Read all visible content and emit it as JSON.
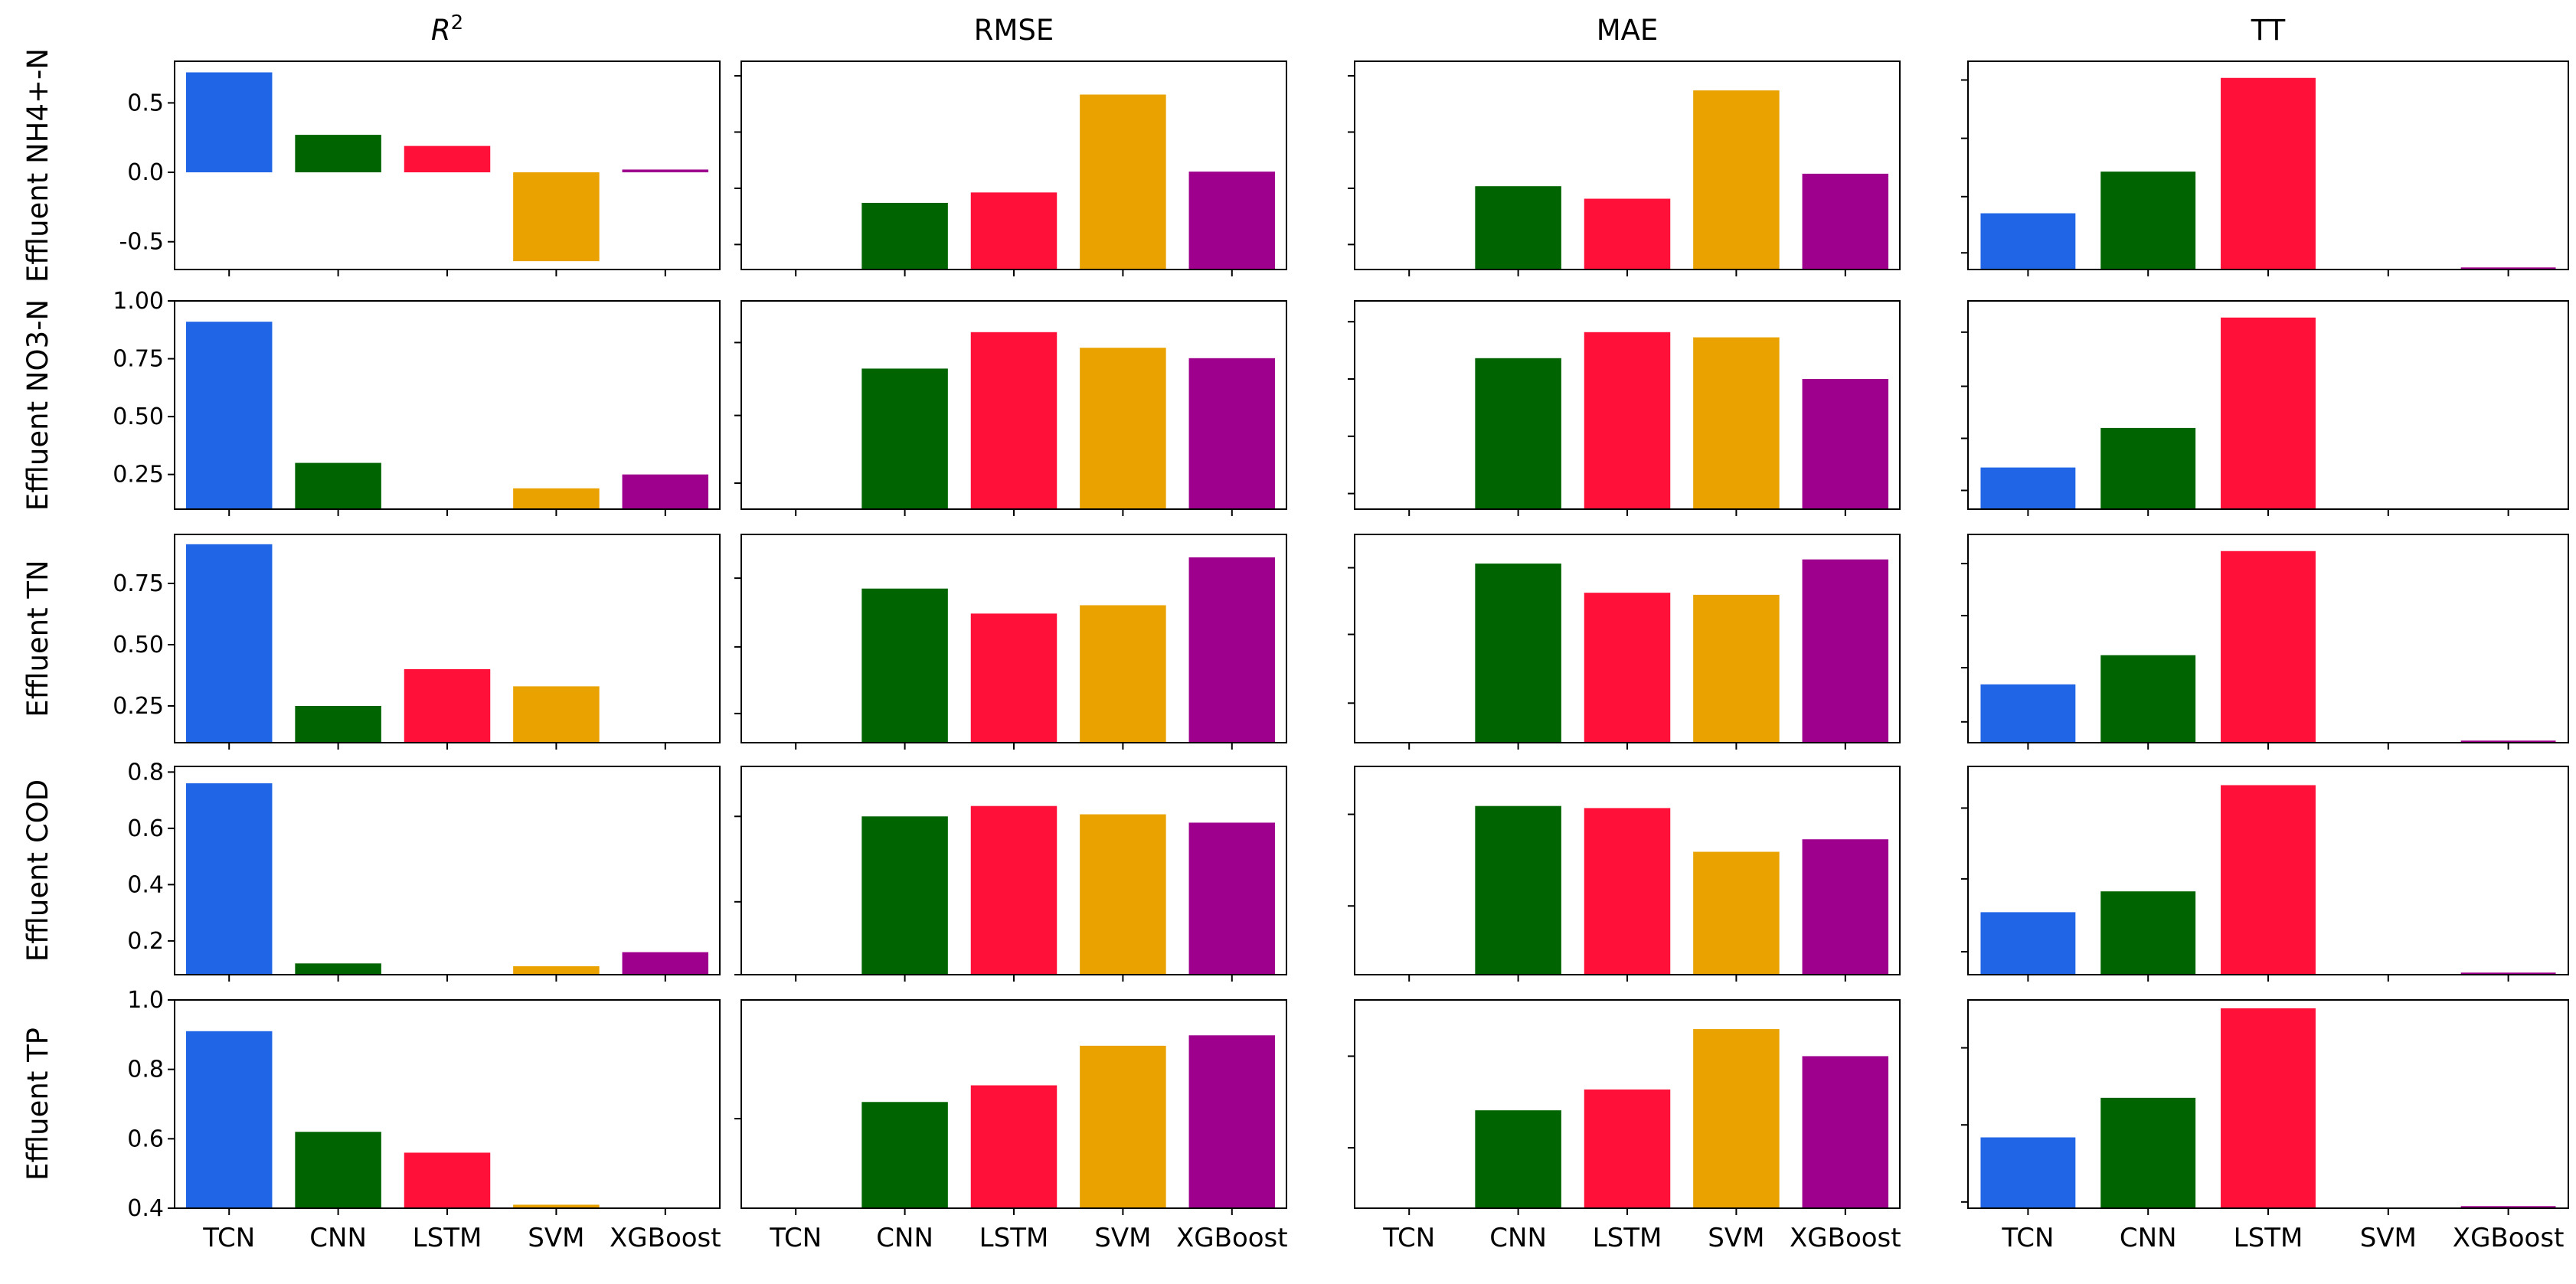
{
  "chart_data": {
    "type": "bar",
    "layout": "grid 5 rows x 4 columns",
    "categories": [
      "TCN",
      "CNN",
      "LSTM",
      "SVM",
      "XGBoost"
    ],
    "colors": [
      "#1f65e6",
      "#006400",
      "#ff1038",
      "#e9a200",
      "#9e008d"
    ],
    "columns": [
      {
        "title_base": "R",
        "title_sup": "2"
      },
      {
        "title_base": "RMSE",
        "title_sup": ""
      },
      {
        "title_base": "MAE",
        "title_sup": ""
      },
      {
        "title_base": "TT",
        "title_sup": ""
      }
    ],
    "rows": [
      {
        "label": "Effluent NH4+-N",
        "panels": [
          {
            "ylim": [
              -0.7,
              0.8
            ],
            "yticks": [
              -0.5,
              0.0,
              0.5
            ],
            "ytick_labels": [
              "-0.5",
              "0.0",
              "0.5"
            ],
            "values": [
              0.72,
              0.27,
              0.19,
              -0.64,
              0.02
            ]
          },
          {
            "ylim": [
              0,
              1
            ],
            "yticks": [
              0.12,
              0.39,
              0.66,
              0.93
            ],
            "ytick_labels": [],
            "values": [
              0.0,
              0.32,
              0.37,
              0.84,
              0.47
            ]
          },
          {
            "ylim": [
              0,
              1
            ],
            "yticks": [
              0.12,
              0.39,
              0.66,
              0.93
            ],
            "ytick_labels": [],
            "values": [
              0.0,
              0.4,
              0.34,
              0.86,
              0.46
            ]
          },
          {
            "ylim": [
              0,
              1
            ],
            "yticks": [
              0.08,
              0.35,
              0.63,
              0.91
            ],
            "ytick_labels": [],
            "values": [
              0.27,
              0.47,
              0.92,
              0.0,
              0.01
            ]
          }
        ]
      },
      {
        "label": "Effluent NO3-N",
        "panels": [
          {
            "ylim": [
              0.1,
              1.0
            ],
            "yticks": [
              0.25,
              0.5,
              0.75,
              1.0
            ],
            "ytick_labels": [
              "0.25",
              "0.50",
              "0.75",
              "1.00"
            ],
            "values": [
              0.91,
              0.3,
              0.1,
              0.19,
              0.25
            ]
          },
          {
            "ylim": [
              0.6,
              1.0
            ],
            "yticks": [
              0.65,
              0.78,
              0.92
            ],
            "ytick_labels": [],
            "values": [
              0.6,
              0.87,
              0.94,
              0.91,
              0.89
            ]
          },
          {
            "ylim": [
              0.6,
              1.0
            ],
            "yticks": [
              0.63,
              0.74,
              0.85,
              0.96
            ],
            "ytick_labels": [],
            "values": [
              0.6,
              0.89,
              0.94,
              0.93,
              0.85
            ]
          },
          {
            "ylim": [
              0,
              1.0
            ],
            "yticks": [
              0.09,
              0.34,
              0.59,
              0.85
            ],
            "ytick_labels": [],
            "values": [
              0.2,
              0.39,
              0.92,
              0.0,
              0.0
            ]
          }
        ]
      },
      {
        "label": "Effluent TN",
        "panels": [
          {
            "ylim": [
              0.1,
              0.95
            ],
            "yticks": [
              0.25,
              0.5,
              0.75
            ],
            "ytick_labels": [
              "0.25",
              "0.50",
              "0.75"
            ],
            "values": [
              0.91,
              0.25,
              0.4,
              0.33,
              0.1
            ]
          },
          {
            "ylim": [
              0,
              1
            ],
            "yticks": [
              0.14,
              0.46,
              0.79
            ],
            "ytick_labels": [],
            "values": [
              0.0,
              0.74,
              0.62,
              0.66,
              0.89
            ]
          },
          {
            "ylim": [
              0,
              1
            ],
            "yticks": [
              0.19,
              0.52,
              0.84
            ],
            "ytick_labels": [],
            "values": [
              0.0,
              0.86,
              0.72,
              0.71,
              0.88
            ]
          },
          {
            "ylim": [
              0,
              1
            ],
            "yticks": [
              0.1,
              0.36,
              0.61,
              0.86
            ],
            "ytick_labels": [],
            "values": [
              0.28,
              0.42,
              0.92,
              0.0,
              0.01
            ]
          }
        ]
      },
      {
        "label": "Effluent COD",
        "panels": [
          {
            "ylim": [
              0.08,
              0.82
            ],
            "yticks": [
              0.2,
              0.4,
              0.6,
              0.8
            ],
            "ytick_labels": [
              "0.2",
              "0.4",
              "0.6",
              "0.8"
            ],
            "values": [
              0.76,
              0.12,
              0.08,
              0.11,
              0.16
            ]
          },
          {
            "ylim": [
              0,
              1
            ],
            "yticks": [
              0.0,
              0.35,
              0.76
            ],
            "ytick_labels": [],
            "values": [
              0.0,
              0.76,
              0.81,
              0.77,
              0.73
            ]
          },
          {
            "ylim": [
              0,
              1
            ],
            "yticks": [
              0.33,
              0.77
            ],
            "ytick_labels": [],
            "values": [
              0.0,
              0.81,
              0.8,
              0.59,
              0.65
            ]
          },
          {
            "ylim": [
              0,
              1
            ],
            "yticks": [
              0.11,
              0.46,
              0.8
            ],
            "ytick_labels": [],
            "values": [
              0.3,
              0.4,
              0.91,
              0.0,
              0.01
            ]
          }
        ]
      },
      {
        "label": "Effluent TP",
        "panels": [
          {
            "ylim": [
              0.4,
              1.0
            ],
            "yticks": [
              0.4,
              0.6,
              0.8,
              1.0
            ],
            "ytick_labels": [
              "0.4",
              "0.6",
              "0.8",
              "1.0"
            ],
            "values": [
              0.91,
              0.62,
              0.56,
              0.41,
              0.4
            ]
          },
          {
            "ylim": [
              0,
              1
            ],
            "yticks": [
              0.43
            ],
            "ytick_labels": [],
            "values": [
              0.0,
              0.51,
              0.59,
              0.78,
              0.83
            ]
          },
          {
            "ylim": [
              0,
              1
            ],
            "yticks": [
              0.29,
              0.73
            ],
            "ytick_labels": [],
            "values": [
              0.0,
              0.47,
              0.57,
              0.86,
              0.73
            ]
          },
          {
            "ylim": [
              0,
              1
            ],
            "yticks": [
              0.03,
              0.4,
              0.77
            ],
            "ytick_labels": [],
            "values": [
              0.34,
              0.53,
              0.96,
              0.0,
              0.01
            ]
          }
        ]
      }
    ]
  }
}
